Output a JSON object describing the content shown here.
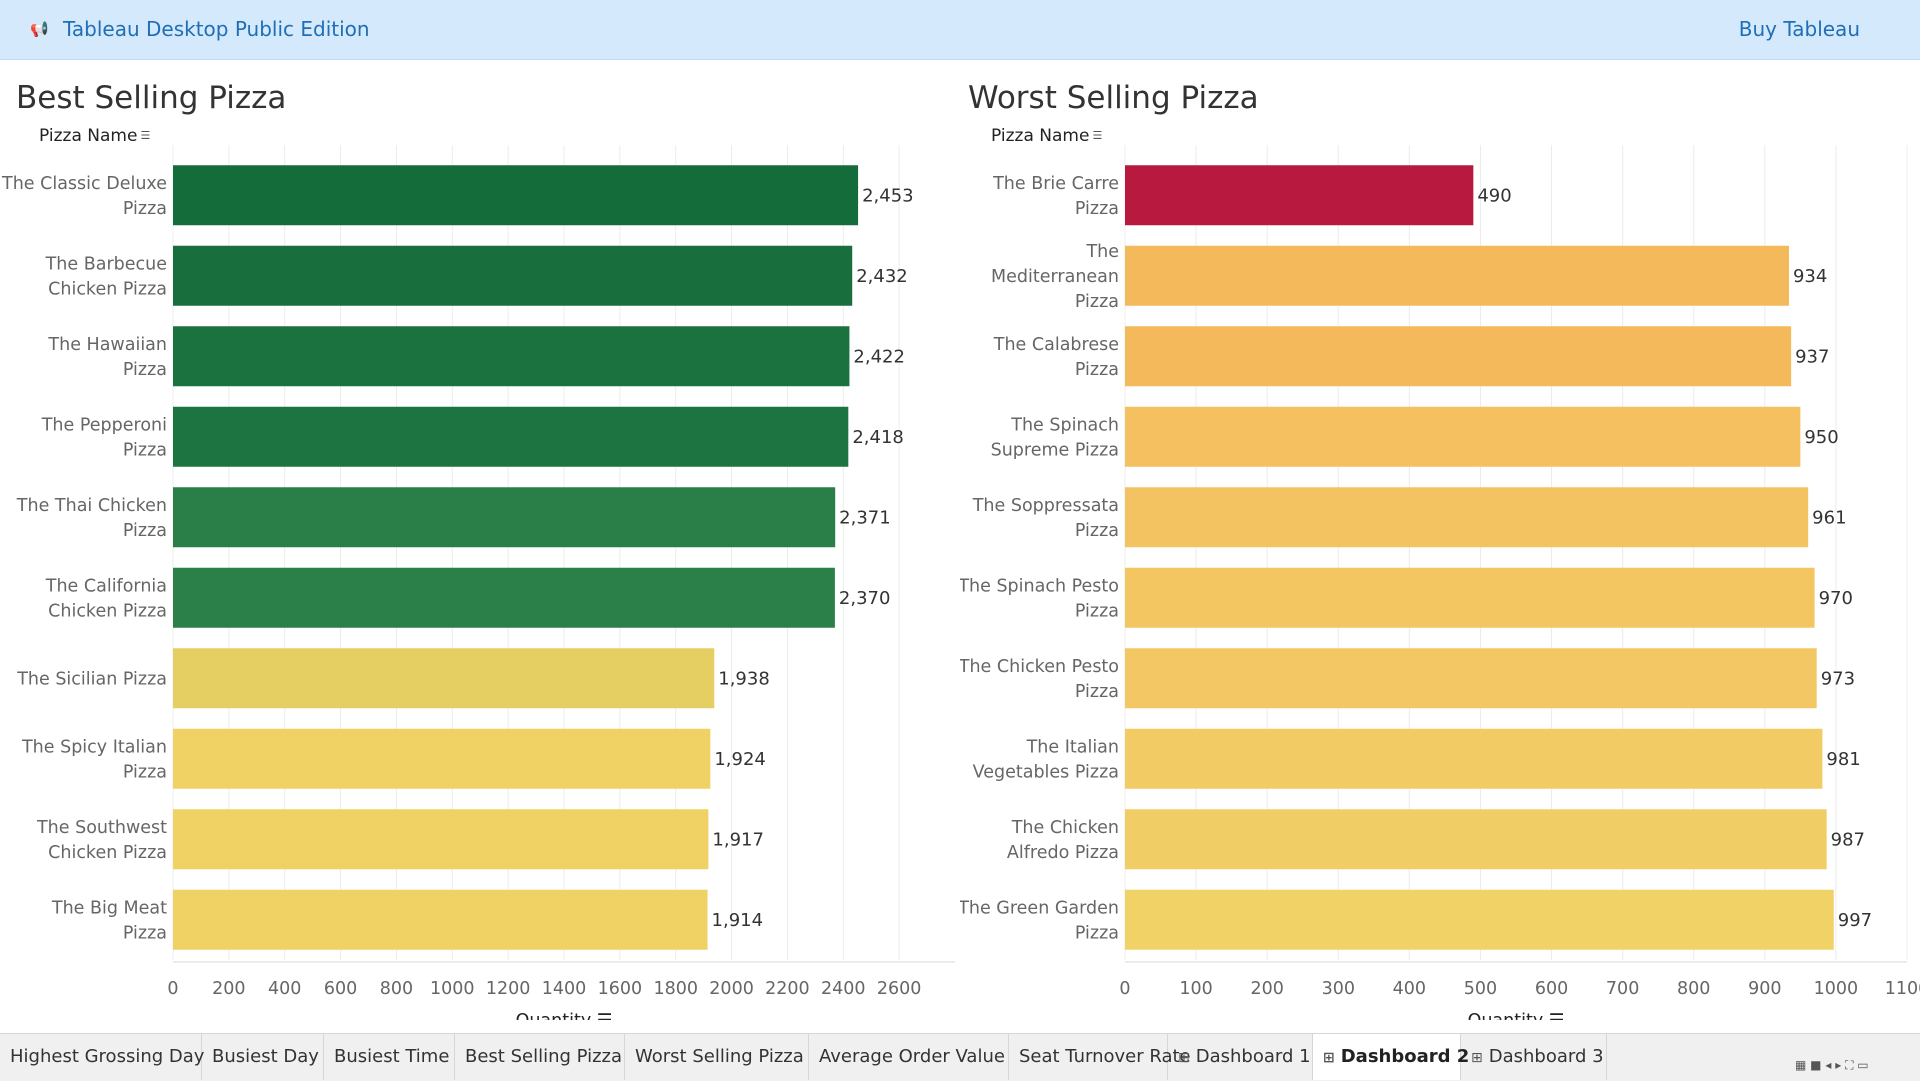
{
  "app": {
    "title": "Tableau Desktop Public Edition",
    "buy_label": "Buy Tableau",
    "announce_icon": "megaphone-icon"
  },
  "charts": [
    {
      "title": "Best Selling Pizza",
      "field_label": "Pizza Name",
      "axis_label": "Quantity"
    },
    {
      "title": "Worst Selling Pizza",
      "field_label": "Pizza Name",
      "axis_label": "Quantity"
    }
  ],
  "chart_data": [
    {
      "type": "bar",
      "orientation": "horizontal",
      "title": "Best Selling Pizza",
      "xlabel": "Quantity",
      "ylabel": "Pizza Name",
      "xlim": [
        0,
        2800
      ],
      "ticks": [
        0,
        200,
        400,
        600,
        800,
        1000,
        1200,
        1400,
        1600,
        1800,
        2000,
        2200,
        2400,
        2600
      ],
      "grid": true,
      "categories": [
        [
          "The Classic Deluxe",
          "Pizza"
        ],
        [
          "The Barbecue",
          "Chicken Pizza"
        ],
        [
          "The Hawaiian",
          "Pizza"
        ],
        [
          "The Pepperoni",
          "Pizza"
        ],
        [
          "The Thai Chicken",
          "Pizza"
        ],
        [
          "The California",
          "Chicken Pizza"
        ],
        [
          "The Sicilian Pizza"
        ],
        [
          "The Spicy Italian",
          "Pizza"
        ],
        [
          "The Southwest",
          "Chicken Pizza"
        ],
        [
          "The Big Meat",
          "Pizza"
        ]
      ],
      "values": [
        2453,
        2432,
        2422,
        2418,
        2371,
        2370,
        1938,
        1924,
        1917,
        1914
      ],
      "labels": [
        "2,453",
        "2,432",
        "2,422",
        "2,418",
        "2,371",
        "2,370",
        "1,938",
        "1,924",
        "1,917",
        "1,914"
      ],
      "colors": [
        "#146c3b",
        "#186f3d",
        "#1b723f",
        "#1d7440",
        "#2a7f48",
        "#2b7f48",
        "#e6cf62",
        "#f0d264",
        "#f0d264",
        "#f0d264"
      ]
    },
    {
      "type": "bar",
      "orientation": "horizontal",
      "title": "Worst Selling Pizza",
      "xlabel": "Quantity",
      "ylabel": "Pizza Name",
      "xlim": [
        0,
        1100
      ],
      "ticks": [
        0,
        100,
        200,
        300,
        400,
        500,
        600,
        700,
        800,
        900,
        1000,
        1100
      ],
      "grid": true,
      "categories": [
        [
          "The Brie Carre",
          "Pizza"
        ],
        [
          "The",
          "Mediterranean",
          "Pizza"
        ],
        [
          "The Calabrese",
          "Pizza"
        ],
        [
          "The Spinach",
          "Supreme Pizza"
        ],
        [
          "The Soppressata",
          "Pizza"
        ],
        [
          "The Spinach Pesto",
          "Pizza"
        ],
        [
          "The Chicken Pesto",
          "Pizza"
        ],
        [
          "The Italian",
          "Vegetables Pizza"
        ],
        [
          "The Chicken",
          "Alfredo Pizza"
        ],
        [
          "The Green Garden",
          "Pizza"
        ]
      ],
      "values": [
        490,
        934,
        937,
        950,
        961,
        970,
        973,
        981,
        987,
        997
      ],
      "labels": [
        "490",
        "934",
        "937",
        "950",
        "961",
        "970",
        "973",
        "981",
        "987",
        "997"
      ],
      "colors": [
        "#b8193f",
        "#f4b95a",
        "#f4b95a",
        "#f4c060",
        "#f4c361",
        "#f4c662",
        "#f3c864",
        "#f2cb65",
        "#f1cd66",
        "#f0d267"
      ]
    }
  ],
  "tabs": [
    {
      "label": "Highest Grossing Day",
      "icon": ""
    },
    {
      "label": "Busiest Day",
      "icon": ""
    },
    {
      "label": "Busiest Time",
      "icon": ""
    },
    {
      "label": "Best Selling Pizza",
      "icon": ""
    },
    {
      "label": "Worst Selling Pizza",
      "icon": ""
    },
    {
      "label": "Average Order Value",
      "icon": ""
    },
    {
      "label": "Seat Turnover Rate",
      "icon": ""
    },
    {
      "label": "Dashboard 1",
      "icon": "dashboard-grid-icon"
    },
    {
      "label": "Dashboard 2",
      "icon": "dashboard-grid-icon",
      "active": true
    },
    {
      "label": "Dashboard 3",
      "icon": "dashboard-grid-icon"
    }
  ]
}
